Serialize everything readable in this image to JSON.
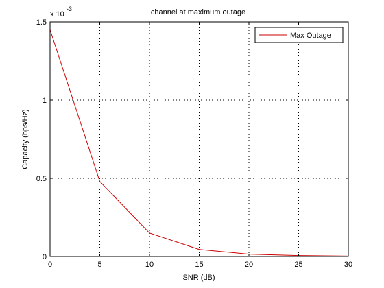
{
  "chart_data": {
    "type": "line",
    "title": "channel at maximum outage",
    "xlabel": "SNR (dB)",
    "ylabel": "Capacity (bps/Hz)",
    "y_exponent_label": "x 10",
    "y_exponent_power": "-3",
    "y_scale_factor": 0.001,
    "xlim": [
      0,
      30
    ],
    "ylim": [
      0,
      1.5
    ],
    "x_ticks": [
      0,
      5,
      10,
      15,
      20,
      25,
      30
    ],
    "x_tick_labels": [
      "0",
      "5",
      "10",
      "15",
      "20",
      "25",
      "30"
    ],
    "y_ticks": [
      0,
      0.5,
      1,
      1.5
    ],
    "y_tick_labels": [
      "0",
      "0.5",
      "1",
      "1.5"
    ],
    "grid": true,
    "legend_position": "top-right",
    "series": [
      {
        "name": "Max Outage",
        "color": "#cc0000",
        "x": [
          0,
          5,
          10,
          15,
          20,
          25,
          30
        ],
        "y": [
          1.45,
          0.48,
          0.15,
          0.045,
          0.015,
          0.006,
          0.003
        ]
      }
    ]
  }
}
